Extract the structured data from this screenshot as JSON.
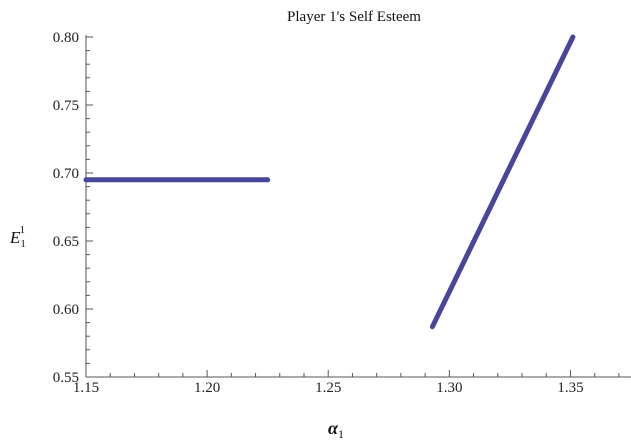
{
  "chart_data": {
    "type": "line",
    "title": "Player 1's Self Esteem",
    "xlabel": "α",
    "xlabel_sub": "1",
    "ylabel": "E",
    "ylabel_sub": "1",
    "ylabel_sup": "1",
    "xlim": [
      1.15,
      1.375
    ],
    "ylim": [
      0.55,
      0.8
    ],
    "xticks": [
      1.15,
      1.2,
      1.25,
      1.3,
      1.35
    ],
    "xtick_labels": [
      "1.15",
      "1.20",
      "1.25",
      "1.30",
      "1.35"
    ],
    "yticks": [
      0.55,
      0.6,
      0.65,
      0.7,
      0.75,
      0.8
    ],
    "ytick_labels": [
      "0.55",
      "0.60",
      "0.65",
      "0.70",
      "0.75",
      "0.80"
    ],
    "grid": false,
    "color": "#47469a",
    "series": [
      {
        "x": [
          1.15,
          1.225
        ],
        "y": [
          0.695,
          0.695
        ]
      },
      {
        "x": [
          1.293,
          1.351
        ],
        "y": [
          0.587,
          0.8
        ]
      }
    ]
  }
}
